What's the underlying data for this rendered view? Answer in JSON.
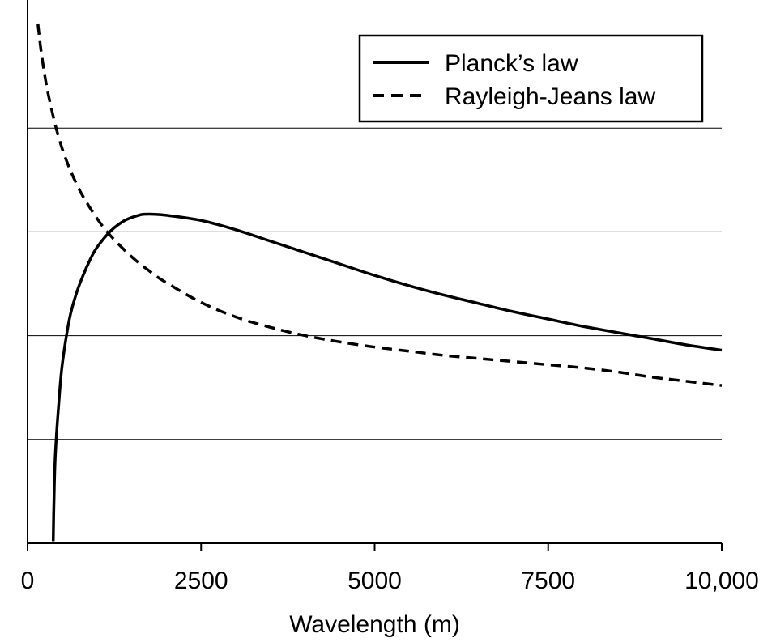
{
  "chart_data": {
    "type": "line",
    "title": "",
    "xlabel": "Wavelength (m)",
    "ylabel": "",
    "xlim": [
      0,
      10000
    ],
    "ylim": [
      0,
      5
    ],
    "x_ticks": [
      0,
      2500,
      5000,
      7500,
      10000
    ],
    "x_tick_labels": [
      "0",
      "2500",
      "5000",
      "7500",
      "10,000"
    ],
    "y_gridlines": [
      1,
      2,
      3,
      4
    ],
    "grid": "horizontal",
    "legend": {
      "position": "top-right",
      "entries": [
        {
          "label": "Planck’s law",
          "style": "solid"
        },
        {
          "label": "Rayleigh-Jeans law",
          "style": "dashed"
        }
      ]
    },
    "series": [
      {
        "name": "Planck’s law",
        "style": "solid",
        "x": [
          370,
          380,
          400,
          450,
          500,
          600,
          700,
          800,
          900,
          1000,
          1200,
          1400,
          1600,
          1700,
          1800,
          2000,
          2500,
          3000,
          3500,
          4000,
          4500,
          5000,
          5500,
          6000,
          6500,
          7000,
          7500,
          8000,
          8500,
          9000,
          9500,
          10000
        ],
        "values": [
          0.02,
          0.4,
          0.85,
          1.35,
          1.72,
          2.15,
          2.4,
          2.58,
          2.73,
          2.85,
          3.01,
          3.11,
          3.16,
          3.17,
          3.17,
          3.16,
          3.11,
          3.02,
          2.91,
          2.8,
          2.69,
          2.58,
          2.48,
          2.39,
          2.31,
          2.23,
          2.16,
          2.09,
          2.03,
          1.97,
          1.91,
          1.86
        ]
      },
      {
        "name": "Rayleigh-Jeans law",
        "style": "dashed",
        "x": [
          150,
          170,
          200,
          250,
          300,
          400,
          500,
          600,
          700,
          800,
          1000,
          1200,
          1500,
          1800,
          2000,
          2500,
          3000,
          3500,
          4000,
          4500,
          5000,
          5500,
          6000,
          6500,
          7000,
          7500,
          8000,
          8500,
          9000,
          9500,
          10000
        ],
        "values": [
          5.0,
          4.88,
          4.72,
          4.5,
          4.32,
          4.03,
          3.8,
          3.62,
          3.47,
          3.34,
          3.13,
          2.96,
          2.76,
          2.6,
          2.51,
          2.32,
          2.18,
          2.08,
          2.0,
          1.94,
          1.89,
          1.85,
          1.81,
          1.78,
          1.75,
          1.72,
          1.69,
          1.65,
          1.6,
          1.56,
          1.52
        ]
      }
    ]
  }
}
